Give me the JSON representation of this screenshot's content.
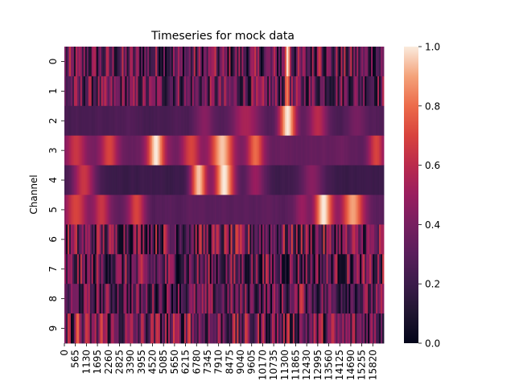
{
  "chart_data": {
    "type": "heatmap",
    "title": "Timeseries for mock data",
    "xlabel": "",
    "ylabel": "Channel",
    "rows": [
      "0",
      "1",
      "2",
      "3",
      "4",
      "5",
      "6",
      "7",
      "8",
      "9"
    ],
    "x_ticks": [
      "0",
      "565",
      "1130",
      "1695",
      "2260",
      "2825",
      "3390",
      "3955",
      "4520",
      "5085",
      "5650",
      "6215",
      "6780",
      "7345",
      "7910",
      "8475",
      "9040",
      "9605",
      "10170",
      "10735",
      "11300",
      "11865",
      "12430",
      "12995",
      "13560",
      "14125",
      "14690",
      "15255",
      "15820"
    ],
    "x_range": [
      0,
      16384
    ],
    "colorbar": {
      "min": 0.0,
      "max": 1.0,
      "ticks": [
        "0.0",
        "0.2",
        "0.4",
        "0.6",
        "0.8",
        "1.0"
      ],
      "colormap": "rocket"
    },
    "row_profiles": [
      {
        "channel": "0",
        "kind": "noise",
        "base": 0.3,
        "amp": 0.35,
        "bursts": [
          {
            "x": 11450,
            "value": 1.0,
            "width": 160
          },
          {
            "x": 13100,
            "value": 0.7,
            "width": 120
          },
          {
            "x": 7600,
            "value": 0.55,
            "width": 80
          }
        ]
      },
      {
        "channel": "1",
        "kind": "noise",
        "base": 0.32,
        "amp": 0.3,
        "bursts": [
          {
            "x": 11450,
            "value": 0.85,
            "width": 120
          }
        ]
      },
      {
        "channel": "2",
        "kind": "smooth",
        "base": 0.25,
        "amp": 0.1,
        "bursts": [
          {
            "x": 11450,
            "value": 1.0,
            "width": 450
          },
          {
            "x": 9300,
            "value": 0.55,
            "width": 800
          },
          {
            "x": 13000,
            "value": 0.6,
            "width": 500
          },
          {
            "x": 15000,
            "value": 0.4,
            "width": 500
          },
          {
            "x": 7200,
            "value": 0.45,
            "width": 500
          }
        ]
      },
      {
        "channel": "3",
        "kind": "smooth",
        "base": 0.35,
        "amp": 0.1,
        "bursts": [
          {
            "x": 4700,
            "value": 1.0,
            "width": 450
          },
          {
            "x": 8100,
            "value": 0.95,
            "width": 600
          },
          {
            "x": 9800,
            "value": 0.8,
            "width": 450
          },
          {
            "x": 2300,
            "value": 0.7,
            "width": 450
          },
          {
            "x": 6500,
            "value": 0.7,
            "width": 500
          },
          {
            "x": 600,
            "value": 0.65,
            "width": 500
          },
          {
            "x": 16000,
            "value": 0.7,
            "width": 400
          }
        ]
      },
      {
        "channel": "4",
        "kind": "smooth",
        "base": 0.2,
        "amp": 0.08,
        "bursts": [
          {
            "x": 6900,
            "value": 0.95,
            "width": 450
          },
          {
            "x": 8200,
            "value": 1.0,
            "width": 550
          },
          {
            "x": 1000,
            "value": 0.65,
            "width": 600
          },
          {
            "x": 9800,
            "value": 0.5,
            "width": 500
          },
          {
            "x": 12700,
            "value": 0.45,
            "width": 600
          }
        ]
      },
      {
        "channel": "5",
        "kind": "smooth",
        "base": 0.3,
        "amp": 0.1,
        "bursts": [
          {
            "x": 13300,
            "value": 1.0,
            "width": 500
          },
          {
            "x": 14800,
            "value": 0.9,
            "width": 600
          },
          {
            "x": 600,
            "value": 0.7,
            "width": 600
          },
          {
            "x": 1900,
            "value": 0.65,
            "width": 450
          },
          {
            "x": 3700,
            "value": 0.7,
            "width": 450
          },
          {
            "x": 12200,
            "value": 0.5,
            "width": 400
          }
        ]
      },
      {
        "channel": "6",
        "kind": "noise",
        "base": 0.35,
        "amp": 0.35,
        "bursts": []
      },
      {
        "channel": "7",
        "kind": "noise",
        "base": 0.3,
        "amp": 0.35,
        "bursts": []
      },
      {
        "channel": "8",
        "kind": "noise",
        "base": 0.3,
        "amp": 0.3,
        "bursts": [
          {
            "x": 12200,
            "value": 0.7,
            "width": 120
          }
        ]
      },
      {
        "channel": "9",
        "kind": "noise",
        "base": 0.35,
        "amp": 0.35,
        "bursts": [
          {
            "x": 700,
            "value": 0.8,
            "width": 100
          },
          {
            "x": 1900,
            "value": 0.75,
            "width": 100
          },
          {
            "x": 6400,
            "value": 0.75,
            "width": 100
          }
        ]
      }
    ]
  }
}
